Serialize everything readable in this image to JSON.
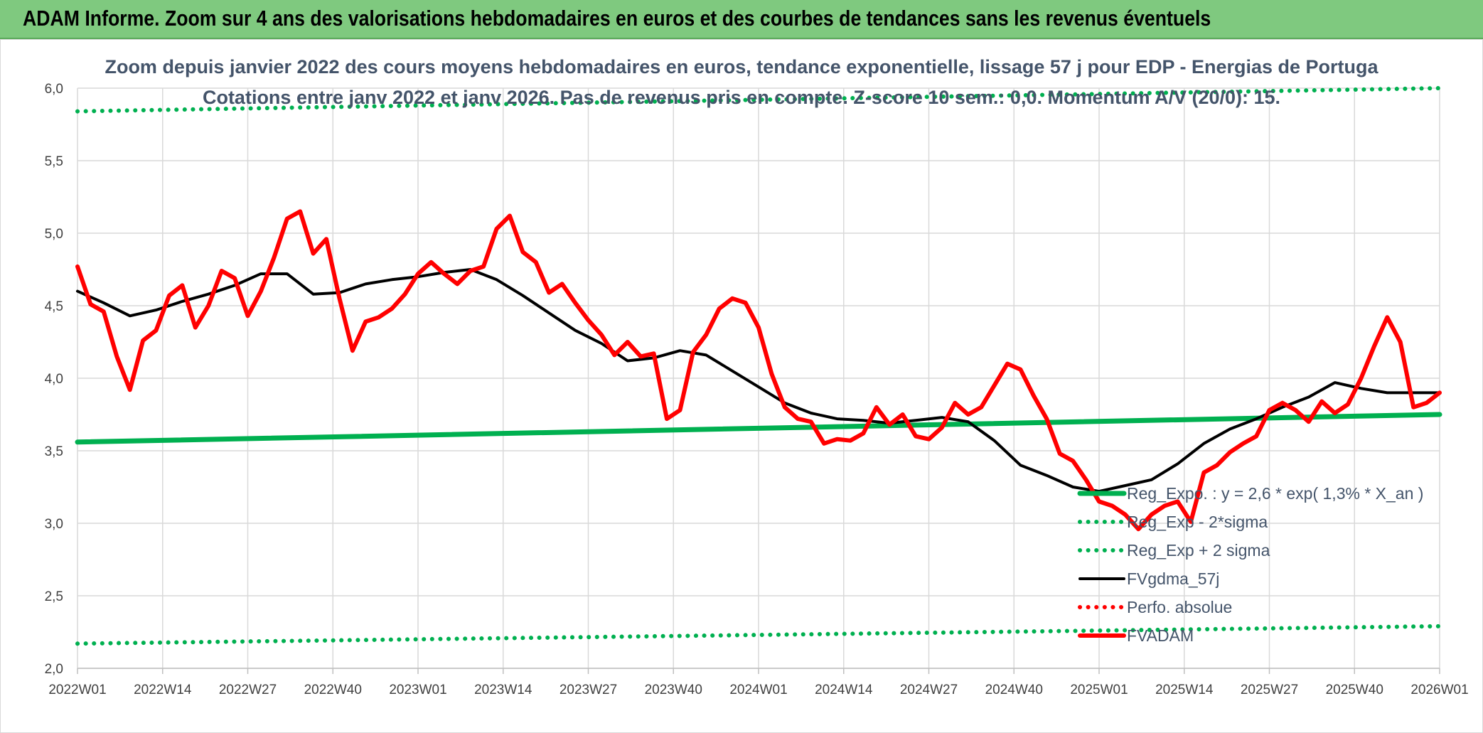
{
  "header": {
    "title": "ADAM Informe. Zoom sur 4 ans des valorisations hebdomadaires en euros et des courbes de tendances sans les revenus éventuels"
  },
  "colors": {
    "header_bg": "#7fc97f",
    "green": "#00b050",
    "red": "#ff0000",
    "black": "#000000",
    "text": "#44546a"
  },
  "chart_data": {
    "type": "line",
    "title": "Zoom depuis janvier 2022 des cours moyens hebdomadaires en euros, tendance exponentielle, lissage 57 j pour EDP - Energias de Portuga",
    "subtitle": "Cotations entre janv 2022 et janv 2026. Pas de revenus pris en compte. Z-score 10 sem.: 0,0. Momentum A/V (20/0): 15.",
    "xlabel": "",
    "ylabel": "",
    "ylim": [
      2.0,
      6.0
    ],
    "yticks": [
      "2,0",
      "2,5",
      "3,0",
      "3,5",
      "4,0",
      "4,5",
      "5,0",
      "5,5",
      "6,0"
    ],
    "x_range": [
      0,
      208
    ],
    "xticks": [
      {
        "label": "2022W01",
        "week": 0
      },
      {
        "label": "2022W14",
        "week": 13
      },
      {
        "label": "2022W27",
        "week": 26
      },
      {
        "label": "2022W40",
        "week": 39
      },
      {
        "label": "2023W01",
        "week": 52
      },
      {
        "label": "2023W14",
        "week": 65
      },
      {
        "label": "2023W27",
        "week": 78
      },
      {
        "label": "2023W40",
        "week": 91
      },
      {
        "label": "2024W01",
        "week": 104
      },
      {
        "label": "2024W14",
        "week": 117
      },
      {
        "label": "2024W27",
        "week": 130
      },
      {
        "label": "2024W40",
        "week": 143
      },
      {
        "label": "2025W01",
        "week": 156
      },
      {
        "label": "2025W14",
        "week": 169
      },
      {
        "label": "2025W27",
        "week": 182
      },
      {
        "label": "2025W40",
        "week": 195
      },
      {
        "label": "2026W01",
        "week": 208
      }
    ],
    "legend_position": "bottom-right",
    "series": [
      {
        "name": "Reg_Expo. : y = 2,6 * exp( 1,3% *  X_an )",
        "style": "solid-thick",
        "color": "#00b050",
        "x": [
          0,
          208
        ],
        "values": [
          3.56,
          3.75
        ]
      },
      {
        "name": "Reg_Exp - 2*sigma",
        "style": "dotted",
        "color": "#00b050",
        "x": [
          0,
          208
        ],
        "values": [
          2.17,
          2.29
        ]
      },
      {
        "name": "Reg_Exp + 2 sigma",
        "style": "dotted",
        "color": "#00b050",
        "x": [
          0,
          208
        ],
        "values": [
          5.84,
          6.0
        ]
      },
      {
        "name": "FVgdma_57j",
        "style": "solid",
        "color": "#000000",
        "x": [
          0,
          4,
          8,
          12,
          16,
          20,
          24,
          28,
          32,
          36,
          40,
          44,
          48,
          52,
          56,
          60,
          64,
          68,
          72,
          76,
          80,
          84,
          88,
          92,
          96,
          100,
          104,
          108,
          112,
          116,
          120,
          124,
          128,
          132,
          136,
          140,
          144,
          148,
          152,
          156,
          160,
          164,
          168,
          172,
          176,
          180,
          184,
          188,
          192,
          196,
          200,
          204,
          208
        ],
        "values": [
          4.6,
          4.52,
          4.43,
          4.47,
          4.53,
          4.58,
          4.64,
          4.72,
          4.72,
          4.58,
          4.59,
          4.65,
          4.68,
          4.7,
          4.73,
          4.75,
          4.68,
          4.57,
          4.45,
          4.33,
          4.24,
          4.12,
          4.14,
          4.19,
          4.16,
          4.05,
          3.94,
          3.83,
          3.76,
          3.72,
          3.71,
          3.69,
          3.71,
          3.73,
          3.7,
          3.57,
          3.4,
          3.33,
          3.25,
          3.22,
          3.26,
          3.3,
          3.41,
          3.55,
          3.65,
          3.72,
          3.8,
          3.87,
          3.97,
          3.93,
          3.9,
          3.9,
          3.9
        ]
      },
      {
        "name": "Perfo. absolue",
        "style": "dotted",
        "color": "#ff0000",
        "x": [],
        "values": []
      },
      {
        "name": "FVADAM",
        "style": "solid-thick",
        "color": "#ff0000",
        "x": [
          0,
          2,
          4,
          6,
          8,
          10,
          12,
          14,
          16,
          18,
          20,
          22,
          24,
          26,
          28,
          30,
          32,
          34,
          36,
          38,
          40,
          42,
          44,
          46,
          48,
          50,
          52,
          54,
          56,
          58,
          60,
          62,
          64,
          66,
          68,
          70,
          72,
          74,
          76,
          78,
          80,
          82,
          84,
          86,
          88,
          90,
          92,
          94,
          96,
          98,
          100,
          102,
          104,
          106,
          108,
          110,
          112,
          114,
          116,
          118,
          120,
          122,
          124,
          126,
          128,
          130,
          132,
          134,
          136,
          138,
          140,
          142,
          144,
          146,
          148,
          150,
          152,
          154,
          156,
          158,
          160,
          162,
          164,
          166,
          168,
          170,
          172,
          174,
          176,
          178,
          180,
          182,
          184,
          186,
          188,
          190,
          192,
          194,
          196,
          198,
          200,
          202,
          204,
          206,
          208
        ],
        "values": [
          4.77,
          4.51,
          4.46,
          4.15,
          3.92,
          4.26,
          4.33,
          4.57,
          4.64,
          4.35,
          4.5,
          4.74,
          4.69,
          4.43,
          4.6,
          4.83,
          5.1,
          5.15,
          4.86,
          4.96,
          4.55,
          4.19,
          4.39,
          4.42,
          4.48,
          4.58,
          4.72,
          4.8,
          4.72,
          4.65,
          4.74,
          4.77,
          5.03,
          5.12,
          4.87,
          4.8,
          4.59,
          4.65,
          4.52,
          4.4,
          4.3,
          4.16,
          4.25,
          4.15,
          4.17,
          3.72,
          3.78,
          4.18,
          4.3,
          4.48,
          4.55,
          4.52,
          4.35,
          4.03,
          3.8,
          3.72,
          3.7,
          3.55,
          3.58,
          3.57,
          3.62,
          3.8,
          3.68,
          3.75,
          3.6,
          3.58,
          3.66,
          3.83,
          3.75,
          3.8,
          3.95,
          4.1,
          4.06,
          3.88,
          3.72,
          3.48,
          3.43,
          3.3,
          3.15,
          3.12,
          3.06,
          2.96,
          3.06,
          3.12,
          3.15,
          3.01,
          3.35,
          3.4,
          3.49,
          3.55,
          3.6,
          3.78,
          3.83,
          3.78,
          3.7,
          3.84,
          3.76,
          3.82,
          4.0,
          4.22,
          4.42,
          4.25,
          3.8,
          3.83,
          3.9
        ]
      }
    ]
  }
}
